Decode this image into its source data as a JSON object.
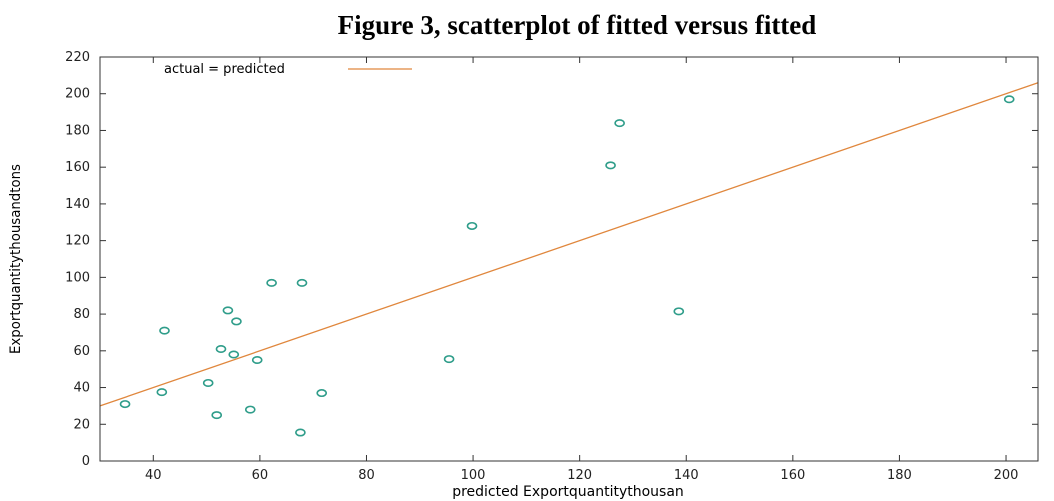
{
  "title": "Figure 3, scatterplot of fitted versus fitted",
  "colors": {
    "point": "#2f9d8a",
    "line": "#e0873d",
    "axis": "#333333"
  },
  "chart_data": {
    "type": "scatter",
    "xlabel": "predicted Exportquantitythousan",
    "ylabel": "Exportquantitythousandtons",
    "xlim": [
      30,
      206
    ],
    "ylim": [
      0,
      220
    ],
    "xticks": [
      40,
      60,
      80,
      100,
      120,
      140,
      160,
      180,
      200
    ],
    "yticks": [
      0,
      20,
      40,
      60,
      80,
      100,
      120,
      140,
      160,
      180,
      200,
      220
    ],
    "legend": {
      "label": "actual = predicted",
      "position": "top-left"
    },
    "reference_line": {
      "label": "actual = predicted",
      "x": [
        30,
        206
      ],
      "y": [
        30,
        206
      ]
    },
    "points": [
      {
        "x": 34.7,
        "y": 31
      },
      {
        "x": 41.6,
        "y": 37.5
      },
      {
        "x": 42.1,
        "y": 71
      },
      {
        "x": 50.3,
        "y": 42.5
      },
      {
        "x": 51.9,
        "y": 25
      },
      {
        "x": 52.7,
        "y": 61
      },
      {
        "x": 54,
        "y": 82
      },
      {
        "x": 55.1,
        "y": 58
      },
      {
        "x": 55.6,
        "y": 76
      },
      {
        "x": 58.2,
        "y": 28
      },
      {
        "x": 59.5,
        "y": 55
      },
      {
        "x": 62.2,
        "y": 97
      },
      {
        "x": 67.6,
        "y": 15.5
      },
      {
        "x": 67.9,
        "y": 97
      },
      {
        "x": 71.6,
        "y": 37
      },
      {
        "x": 95.5,
        "y": 55.5
      },
      {
        "x": 99.8,
        "y": 128
      },
      {
        "x": 125.8,
        "y": 161
      },
      {
        "x": 127.5,
        "y": 184
      },
      {
        "x": 138.6,
        "y": 81.5
      },
      {
        "x": 200.6,
        "y": 197
      }
    ]
  }
}
